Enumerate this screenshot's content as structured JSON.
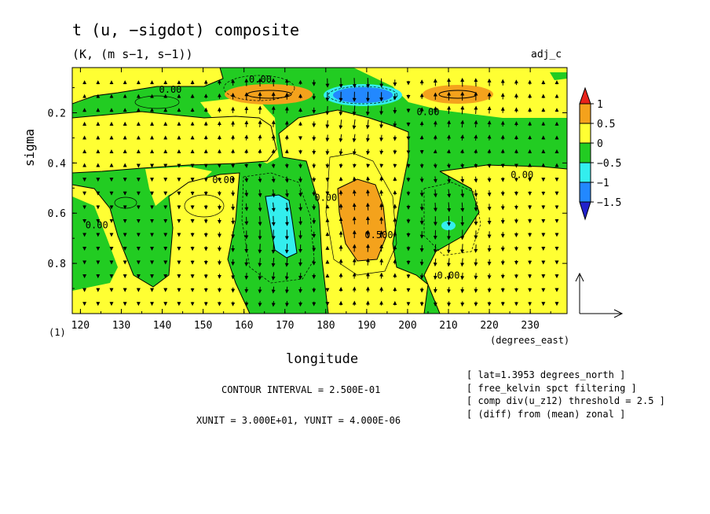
{
  "chart_data": {
    "type": "contour",
    "title": "t (u, −sigdot) composite",
    "units": "(K, (m s−1, s−1))",
    "tag": "adj_c",
    "xlabel": "longitude",
    "xunits": "(degrees_east)",
    "ylabel": "sigma",
    "axis_corner": "(1)",
    "xlim": [
      118,
      239
    ],
    "ylim": [
      0.02,
      1.0
    ],
    "y_inverted": true,
    "x_ticks": [
      120,
      130,
      140,
      150,
      160,
      170,
      180,
      190,
      200,
      210,
      220,
      230
    ],
    "x_tick_labels": [
      "120",
      "130",
      "140",
      "150",
      "160",
      "170",
      "180",
      "190",
      "200",
      "210",
      "220",
      "230"
    ],
    "y_ticks": [
      0.2,
      0.4,
      0.6,
      0.8
    ],
    "y_tick_labels": [
      "0.2",
      "0.4",
      "0.6",
      "0.8"
    ],
    "colorbar": {
      "levels": [
        -1.5,
        -1,
        -0.5,
        0,
        0.5,
        1
      ],
      "labels": [
        "1",
        "0.5",
        "0",
        "−0.5",
        "−1",
        "−1.5"
      ],
      "colors": [
        "#e8221a",
        "#f4a21c",
        "#ffff33",
        "#22cc22",
        "#33eeee",
        "#2288ff",
        "#2222cc"
      ]
    },
    "contour_labels": [
      {
        "text": "0.00",
        "x": 164,
        "y": 0.08
      },
      {
        "text": "0.00",
        "x": 142,
        "y": 0.12
      },
      {
        "text": "0.00",
        "x": 205,
        "y": 0.21
      },
      {
        "text": "0.00",
        "x": 155,
        "y": 0.48
      },
      {
        "text": "0.00",
        "x": 180,
        "y": 0.55
      },
      {
        "text": "0.00",
        "x": 228,
        "y": 0.46
      },
      {
        "text": "0.00",
        "x": 124,
        "y": 0.66
      },
      {
        "text": "0.500",
        "x": 193,
        "y": 0.7
      },
      {
        "text": "0.00",
        "x": 210,
        "y": 0.86
      }
    ],
    "features": [
      {
        "x": 167,
        "y": 0.12,
        "value": 0.75
      },
      {
        "x": 186,
        "y": 0.12,
        "value": -1.25
      },
      {
        "x": 213,
        "y": 0.12,
        "value": 0.75
      },
      {
        "x": 168,
        "y": 0.68,
        "value": -1.0
      },
      {
        "x": 190,
        "y": 0.66,
        "value": 0.75
      },
      {
        "x": 210,
        "y": 0.65,
        "value": -1.0
      }
    ],
    "vector_reference": {
      "xunit": "3.000E+01",
      "yunit": "4.000E-06"
    },
    "contour_interval_text": "CONTOUR INTERVAL = 2.500E-01",
    "unit_scale_text": "XUNIT = 3.000E+01, YUNIT = 4.000E-06"
  },
  "notes": [
    "[ lat=1.3953 degrees_north ]",
    "[ free_kelvin spct filtering ]",
    "[ comp div(u_z12) threshold = 2.5 ]",
    "[ (diff) from (mean) zonal ]"
  ]
}
